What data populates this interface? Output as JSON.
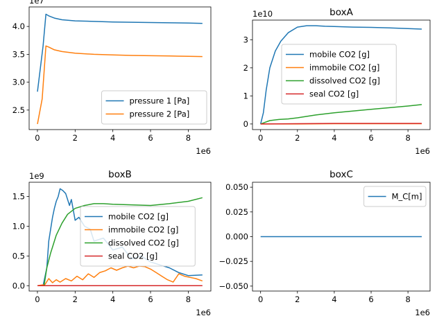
{
  "chart_data": [
    {
      "type": "line",
      "title": "",
      "xlabel": "",
      "ylabel": "",
      "x_offset_label": "1e6",
      "y_offset_label": "1e7",
      "xlim": [
        -0.44,
        9.2
      ],
      "ylim": [
        2.15,
        4.35
      ],
      "xticks": [
        0,
        2,
        4,
        6,
        8
      ],
      "yticks": [
        2.5,
        3.0,
        3.5,
        4.0
      ],
      "ytick_labels": [
        "2.5",
        "3.0",
        "3.5",
        "4.0"
      ],
      "legend_position": "lower-right",
      "series": [
        {
          "name": "pressure 1 [Pa]",
          "color": "#1f77b4",
          "x": [
            0,
            0.3,
            0.45,
            0.6,
            0.9,
            1.3,
            2,
            3,
            4,
            5,
            6,
            7,
            8,
            8.75
          ],
          "y": [
            2.83,
            3.65,
            4.22,
            4.19,
            4.15,
            4.12,
            4.1,
            4.09,
            4.08,
            4.075,
            4.07,
            4.065,
            4.06,
            4.055
          ]
        },
        {
          "name": "pressure 2 [Pa]",
          "color": "#ff7f0e",
          "x": [
            0,
            0.25,
            0.45,
            0.6,
            0.9,
            1.3,
            2,
            3,
            4,
            5,
            6,
            7,
            8,
            8.75
          ],
          "y": [
            2.25,
            2.7,
            3.65,
            3.63,
            3.58,
            3.55,
            3.52,
            3.5,
            3.49,
            3.48,
            3.475,
            3.47,
            3.465,
            3.46
          ]
        }
      ]
    },
    {
      "type": "line",
      "title": "boxA",
      "xlabel": "",
      "ylabel": "",
      "x_offset_label": "1e6",
      "y_offset_label": "1e10",
      "xlim": [
        -0.44,
        9.2
      ],
      "ylim": [
        -0.2,
        3.7
      ],
      "xticks": [
        0,
        2,
        4,
        6,
        8
      ],
      "yticks": [
        0,
        1,
        2,
        3
      ],
      "ytick_labels": [
        "0",
        "1",
        "2",
        "3"
      ],
      "legend_position": "center",
      "series": [
        {
          "name": "mobile CO2 [g]",
          "color": "#1f77b4",
          "x": [
            0,
            0.15,
            0.3,
            0.5,
            0.8,
            1.1,
            1.5,
            2,
            2.5,
            3,
            3.5,
            4,
            5,
            6,
            7,
            8,
            8.75
          ],
          "y": [
            0,
            0.4,
            1.2,
            2.0,
            2.6,
            2.95,
            3.25,
            3.45,
            3.5,
            3.5,
            3.48,
            3.47,
            3.45,
            3.44,
            3.42,
            3.4,
            3.38
          ]
        },
        {
          "name": "immobile CO2 [g]",
          "color": "#ff7f0e",
          "x": [
            0,
            2,
            4,
            6,
            8,
            8.75
          ],
          "y": [
            0,
            0,
            0.01,
            0.01,
            0.01,
            0.01
          ]
        },
        {
          "name": "dissolved CO2 [g]",
          "color": "#2ca02c",
          "x": [
            0,
            0.2,
            0.5,
            1,
            1.5,
            2,
            3,
            4,
            5,
            6,
            7,
            8,
            8.75
          ],
          "y": [
            0,
            0.05,
            0.12,
            0.16,
            0.18,
            0.22,
            0.32,
            0.4,
            0.46,
            0.52,
            0.58,
            0.64,
            0.69
          ]
        },
        {
          "name": "seal CO2 [g]",
          "color": "#d62728",
          "x": [
            0,
            2,
            4,
            6,
            8,
            8.75
          ],
          "y": [
            0,
            0.01,
            0.02,
            0.02,
            0.02,
            0.02
          ]
        }
      ]
    },
    {
      "type": "line",
      "title": "boxB",
      "xlabel": "",
      "ylabel": "",
      "x_offset_label": "1e6",
      "y_offset_label": "1e9",
      "xlim": [
        -0.44,
        9.2
      ],
      "ylim": [
        -0.09,
        1.74
      ],
      "xticks": [
        0,
        2,
        4,
        6,
        8
      ],
      "yticks": [
        0.0,
        0.5,
        1.0,
        1.5
      ],
      "ytick_labels": [
        "0.0",
        "0.5",
        "1.0",
        "1.5"
      ],
      "legend_position": "center-right",
      "series": [
        {
          "name": "mobile CO2 [g]",
          "color": "#1f77b4",
          "x": [
            0,
            0.3,
            0.5,
            0.6,
            0.7,
            0.8,
            0.9,
            1.0,
            1.1,
            1.2,
            1.35,
            1.5,
            1.7,
            1.8,
            2.0,
            2.2,
            2.5,
            2.8,
            3.0,
            3.5,
            4.0,
            4.5,
            5.0,
            5.5,
            6.0,
            6.5,
            7.0,
            7.5,
            8.0,
            8.75
          ],
          "y": [
            0,
            0,
            0.3,
            0.75,
            0.95,
            1.15,
            1.3,
            1.42,
            1.5,
            1.63,
            1.6,
            1.55,
            1.35,
            1.45,
            1.1,
            1.15,
            1.0,
            0.95,
            0.75,
            0.8,
            0.6,
            0.65,
            0.45,
            0.5,
            0.4,
            0.35,
            0.3,
            0.22,
            0.17,
            0.18
          ]
        },
        {
          "name": "immobile CO2 [g]",
          "color": "#ff7f0e",
          "x": [
            0,
            0.4,
            0.6,
            0.8,
            1.0,
            1.2,
            1.5,
            1.8,
            2.1,
            2.4,
            2.7,
            3.0,
            3.3,
            3.6,
            3.9,
            4.2,
            4.5,
            4.8,
            5.1,
            5.4,
            5.7,
            6.0,
            6.3,
            6.6,
            6.9,
            7.2,
            7.5,
            7.8,
            8.1,
            8.4,
            8.75
          ],
          "y": [
            0,
            0.02,
            0.12,
            0.05,
            0.1,
            0.06,
            0.12,
            0.08,
            0.16,
            0.1,
            0.2,
            0.14,
            0.22,
            0.25,
            0.3,
            0.26,
            0.3,
            0.33,
            0.3,
            0.33,
            0.32,
            0.28,
            0.22,
            0.16,
            0.1,
            0.06,
            0.2,
            0.16,
            0.14,
            0.12,
            0.08
          ]
        },
        {
          "name": "dissolved CO2 [g]",
          "color": "#2ca02c",
          "x": [
            0,
            0.35,
            0.5,
            0.7,
            1,
            1.3,
            1.6,
            2,
            2.5,
            3,
            3.5,
            4,
            5,
            6,
            7,
            8,
            8.75
          ],
          "y": [
            0,
            0.0,
            0.3,
            0.55,
            0.85,
            1.05,
            1.2,
            1.3,
            1.35,
            1.38,
            1.38,
            1.37,
            1.36,
            1.35,
            1.38,
            1.42,
            1.48
          ]
        },
        {
          "name": "seal CO2 [g]",
          "color": "#d62728",
          "x": [
            0,
            2,
            4,
            6,
            8,
            8.75
          ],
          "y": [
            0,
            0,
            0,
            0,
            0,
            0
          ]
        }
      ]
    },
    {
      "type": "line",
      "title": "boxC",
      "xlabel": "",
      "ylabel": "",
      "x_offset_label": "1e6",
      "y_offset_label": "",
      "xlim": [
        -0.44,
        9.2
      ],
      "ylim": [
        -0.055,
        0.055
      ],
      "xticks": [
        0,
        2,
        4,
        6,
        8
      ],
      "yticks": [
        -0.05,
        -0.025,
        0.0,
        0.025,
        0.05
      ],
      "ytick_labels": [
        "−0.050",
        "−0.025",
        "0.000",
        "0.025",
        "0.050"
      ],
      "legend_position": "upper-right",
      "series": [
        {
          "name": "M_C[m]",
          "color": "#1f77b4",
          "x": [
            0,
            8.75
          ],
          "y": [
            0,
            0
          ]
        }
      ]
    }
  ]
}
